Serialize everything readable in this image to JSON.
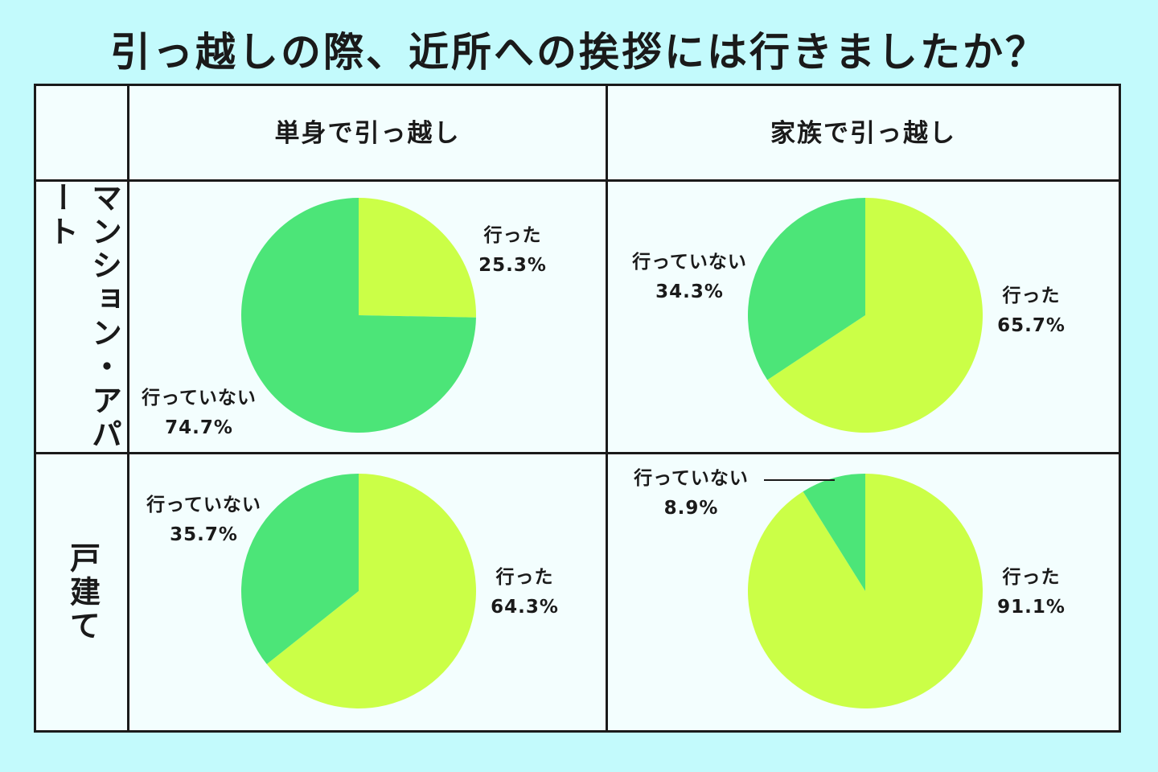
{
  "title": "引っ越しの際、近所への挨拶には行きましたか？",
  "columns": [
    "単身で引っ越し",
    "家族で引っ越し"
  ],
  "rows": [
    "マンション・アパート",
    "戸建て"
  ],
  "colors": {
    "went": "#cbff47",
    "not_went": "#4ce578",
    "background": "#c3fafc",
    "panel": "#f3fefe",
    "border": "#1a1a1a"
  },
  "chart_data": [
    {
      "type": "pie",
      "row": "マンション・アパート",
      "column": "単身で引っ越し",
      "slices": [
        {
          "label": "行った",
          "value": 25.3,
          "value_label": "25.3%"
        },
        {
          "label": "行っていない",
          "value": 74.7,
          "value_label": "74.7%"
        }
      ]
    },
    {
      "type": "pie",
      "row": "マンション・アパート",
      "column": "家族で引っ越し",
      "slices": [
        {
          "label": "行った",
          "value": 65.7,
          "value_label": "65.7%"
        },
        {
          "label": "行っていない",
          "value": 34.3,
          "value_label": "34.3%"
        }
      ]
    },
    {
      "type": "pie",
      "row": "戸建て",
      "column": "単身で引っ越し",
      "slices": [
        {
          "label": "行った",
          "value": 64.3,
          "value_label": "64.3%"
        },
        {
          "label": "行っていない",
          "value": 35.7,
          "value_label": "35.7%"
        }
      ]
    },
    {
      "type": "pie",
      "row": "戸建て",
      "column": "家族で引っ越し",
      "slices": [
        {
          "label": "行った",
          "value": 91.1,
          "value_label": "91.1%"
        },
        {
          "label": "行っていない",
          "value": 8.9,
          "value_label": "8.9%"
        }
      ]
    }
  ]
}
